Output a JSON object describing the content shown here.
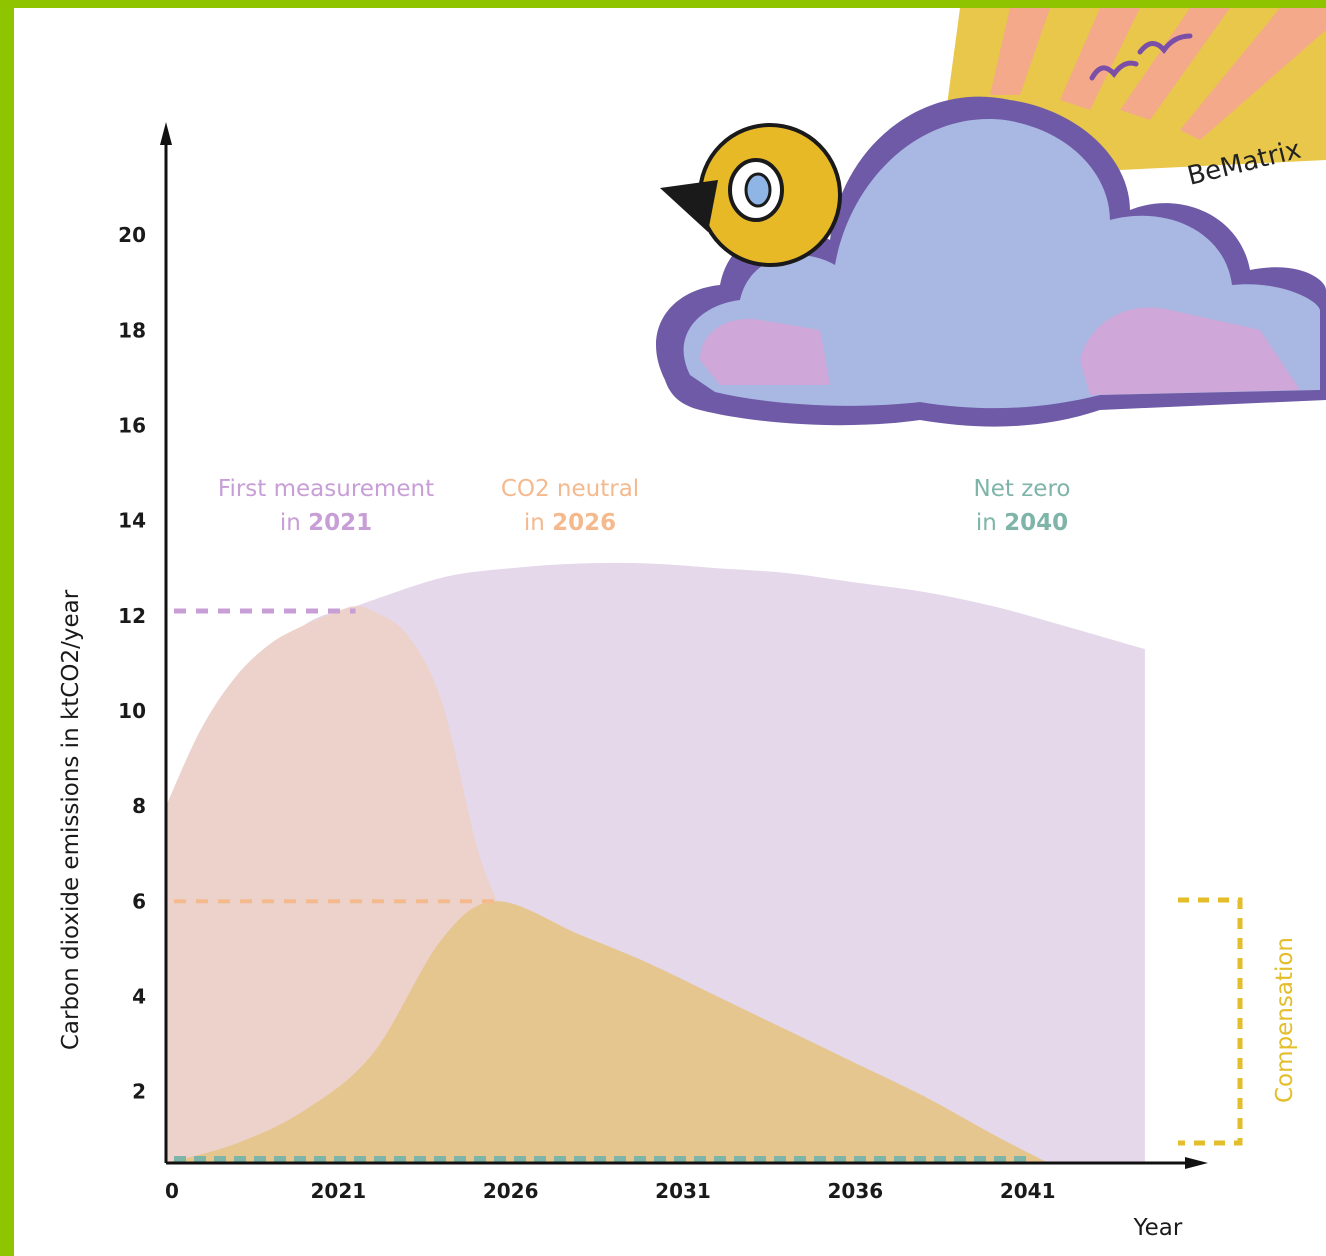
{
  "colors": {
    "frame": "#8fc400",
    "measured_area": "#e4d8ea",
    "reduction_area": "#ecd2cb",
    "compensation_area": "#e6c68f",
    "measurement_line": "#c89ed6",
    "neutral_line": "#f5b98e",
    "netzero_line": "#7fb5a8",
    "compensation_bracket": "#e3bd2a",
    "axis": "#111111"
  },
  "illustration": {
    "logo_text": "BeMatrix",
    "icons": [
      "bird-icon",
      "cloud-icon",
      "sun-rays-icon",
      "flying-birds-icon"
    ]
  },
  "chart_data": {
    "type": "area",
    "ylabel": "Carbon dioxide emissions in ktCO2/year",
    "xlabel": "Year",
    "x_ticks": [
      "0",
      "2021",
      "2026",
      "2031",
      "2036",
      "2041"
    ],
    "y_ticks": [
      "2",
      "4",
      "6",
      "8",
      "10",
      "12",
      "14",
      "16",
      "18",
      "20"
    ],
    "xlim": [
      2016,
      2046
    ],
    "ylim": [
      0.5,
      22
    ],
    "series": [
      {
        "name": "",
        "x": [
          2016,
          2018,
          2020,
          2021.5,
          2024,
          2026,
          2028,
          2030,
          2032,
          2034,
          2036,
          2038,
          2040,
          2042,
          2044.4
        ],
        "y": [
          8,
          10.5,
          11.8,
          12.2,
          12.8,
          13.0,
          13.1,
          13.1,
          13.0,
          12.9,
          12.7,
          12.5,
          12.2,
          11.8,
          11.3
        ]
      },
      {
        "name": "",
        "x": [
          2016,
          2017,
          2018,
          2019,
          2020,
          2021,
          2021.5,
          2022,
          2023,
          2024,
          2025,
          2025.6
        ],
        "y": [
          8,
          9.6,
          10.7,
          11.4,
          11.8,
          12.1,
          12.2,
          12.1,
          11.6,
          10.2,
          7.2,
          6.0
        ]
      },
      {
        "name": "",
        "x": [
          2016,
          2018,
          2020,
          2022,
          2024,
          2025.6,
          2028,
          2030,
          2032,
          2034,
          2036,
          2038,
          2040,
          2041.6
        ],
        "y": [
          0.5,
          0.9,
          1.6,
          2.8,
          5.2,
          6.0,
          5.3,
          4.7,
          4.0,
          3.3,
          2.6,
          1.9,
          1.1,
          0.5
        ]
      }
    ],
    "reference_lines": [
      {
        "y": 12.1,
        "x_end": 2021.5
      },
      {
        "y": 6.0,
        "x_end": 2025.6
      },
      {
        "y": 0.5,
        "x_end": 2041
      }
    ],
    "annotations": [
      {
        "line1": "First measurement",
        "line2_prefix": "in ",
        "line2_year": "2021"
      },
      {
        "line1": "CO2 neutral",
        "line2_prefix": "in ",
        "line2_year": "2026"
      },
      {
        "line1": "Net zero",
        "line2_prefix": "in ",
        "line2_year": "2040"
      }
    ],
    "bracket_label": "Compensation",
    "grid": false
  }
}
